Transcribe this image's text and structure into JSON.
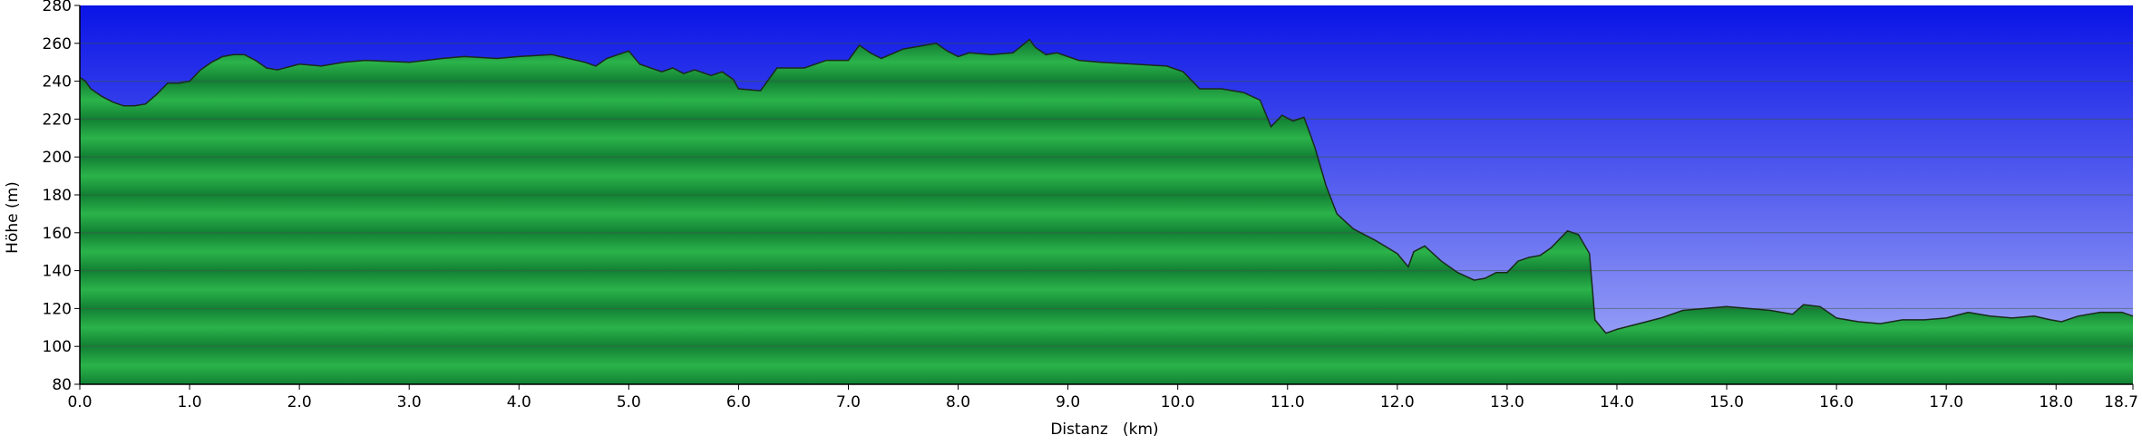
{
  "chart_data": {
    "type": "area",
    "xlabel": "Distanz   (km)",
    "ylabel": "Höhe (m)",
    "xlim": [
      0.0,
      18.7
    ],
    "ylim": [
      80,
      280
    ],
    "x_ticks": [
      0.0,
      1.0,
      2.0,
      3.0,
      4.0,
      5.0,
      6.0,
      7.0,
      8.0,
      9.0,
      10.0,
      11.0,
      12.0,
      13.0,
      14.0,
      15.0,
      16.0,
      17.0,
      18.0,
      18.7
    ],
    "x_tick_labels": [
      "0.0",
      "1.0",
      "2.0",
      "3.0",
      "4.0",
      "5.0",
      "6.0",
      "7.0",
      "8.0",
      "9.0",
      "10.0",
      "11.0",
      "12.0",
      "13.0",
      "14.0",
      "15.0",
      "16.0",
      "17.0",
      "18.0",
      "18.7"
    ],
    "y_ticks": [
      80,
      100,
      120,
      140,
      160,
      180,
      200,
      220,
      240,
      260,
      280
    ],
    "y_tick_labels": [
      "80",
      "100",
      "120",
      "140",
      "160",
      "180",
      "200",
      "220",
      "240",
      "260",
      "280"
    ],
    "grid": true,
    "colors": {
      "sky_top": "#0a14e6",
      "sky_bottom": "#a8b0f8",
      "fill_light": "#2bb34a",
      "fill_dark": "#128034",
      "line": "#1a2a1a",
      "grid": "#3c5a3c",
      "axis": "#000000"
    },
    "series": [
      {
        "x": [
          0.0,
          0.05,
          0.1,
          0.2,
          0.3,
          0.4,
          0.5,
          0.6,
          0.7,
          0.8,
          0.9,
          1.0,
          1.1,
          1.2,
          1.3,
          1.4,
          1.5,
          1.6,
          1.7,
          1.8,
          2.0,
          2.2,
          2.4,
          2.6,
          3.0,
          3.3,
          3.5,
          3.8,
          4.0,
          4.3,
          4.6,
          4.7,
          4.8,
          5.0,
          5.1,
          5.3,
          5.4,
          5.5,
          5.6,
          5.75,
          5.85,
          5.95,
          6.0,
          6.2,
          6.35,
          6.6,
          6.8,
          7.0,
          7.1,
          7.2,
          7.3,
          7.5,
          7.8,
          7.9,
          8.0,
          8.1,
          8.3,
          8.5,
          8.65,
          8.7,
          8.8,
          8.9,
          9.1,
          9.3,
          9.6,
          9.9,
          10.05,
          10.2,
          10.4,
          10.6,
          10.75,
          10.85,
          10.95,
          11.05,
          11.15,
          11.25,
          11.35,
          11.45,
          11.6,
          11.8,
          12.0,
          12.1,
          12.15,
          12.25,
          12.4,
          12.55,
          12.7,
          12.8,
          12.9,
          13.0,
          13.1,
          13.2,
          13.3,
          13.4,
          13.55,
          13.65,
          13.75,
          13.8,
          13.9,
          14.0,
          14.2,
          14.4,
          14.6,
          14.8,
          15.0,
          15.2,
          15.4,
          15.6,
          15.7,
          15.85,
          16.0,
          16.2,
          16.4,
          16.6,
          16.8,
          17.0,
          17.2,
          17.4,
          17.6,
          17.8,
          17.95,
          18.05,
          18.2,
          18.4,
          18.6,
          18.7
        ],
        "y": [
          242,
          240,
          236,
          232,
          229,
          227,
          227,
          228,
          233,
          239,
          239,
          240,
          246,
          250,
          253,
          254,
          254,
          251,
          247,
          246,
          249,
          248,
          250,
          251,
          250,
          252,
          253,
          252,
          253,
          254,
          250,
          248,
          252,
          256,
          249,
          245,
          247,
          244,
          246,
          243,
          245,
          241,
          236,
          235,
          247,
          247,
          251,
          251,
          259,
          255,
          252,
          257,
          260,
          256,
          253,
          255,
          254,
          255,
          262,
          258,
          254,
          255,
          251,
          250,
          249,
          248,
          245,
          236,
          236,
          234,
          230,
          216,
          222,
          219,
          221,
          205,
          185,
          170,
          162,
          156,
          149,
          142,
          150,
          153,
          145,
          139,
          135,
          136,
          139,
          139,
          145,
          147,
          148,
          152,
          161,
          159,
          149,
          114,
          107,
          109,
          112,
          115,
          119,
          120,
          121,
          120,
          119,
          117,
          122,
          121,
          115,
          113,
          112,
          114,
          114,
          115,
          118,
          116,
          115,
          116,
          114,
          113,
          116,
          118,
          118,
          116
        ]
      }
    ]
  }
}
